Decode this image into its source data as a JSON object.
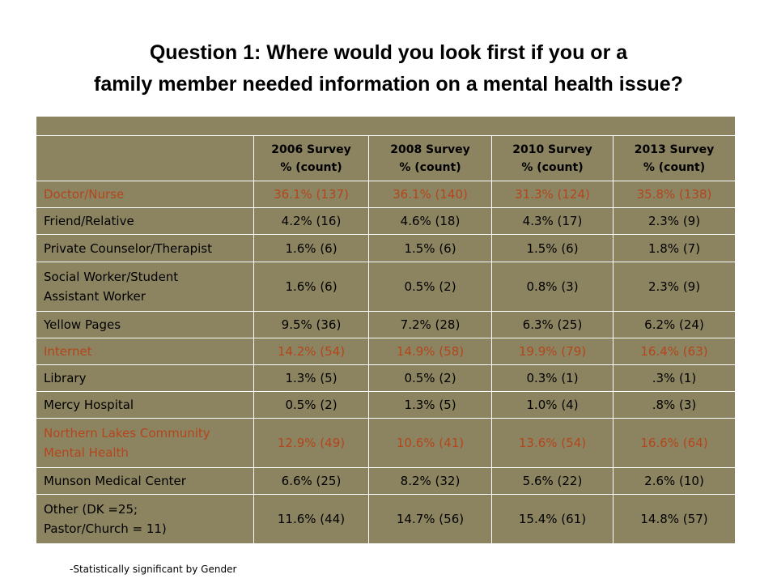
{
  "title": {
    "line1": "Question 1:  Where would you look first if you or a",
    "line2": "family member needed information on a mental health issue?"
  },
  "table": {
    "headers": [
      {
        "survey": "2006 Survey",
        "unit": "% (count)"
      },
      {
        "survey": "2008 Survey",
        "unit": "% (count)"
      },
      {
        "survey": "2010 Survey",
        "unit": "% (count)"
      },
      {
        "survey": "2013 Survey",
        "unit": "% (count)"
      }
    ],
    "rows": [
      {
        "label": [
          "Doctor/Nurse"
        ],
        "values": [
          "36.1% (137)",
          "36.1% (140)",
          "31.3% (124)",
          "35.8% (138)"
        ],
        "highlight": true
      },
      {
        "label": [
          "Friend/Relative"
        ],
        "values": [
          "4.2% (16)",
          "4.6% (18)",
          "4.3% (17)",
          "2.3% (9)"
        ],
        "highlight": false
      },
      {
        "label": [
          "Private Counselor/Therapist"
        ],
        "values": [
          "1.6% (6)",
          "1.5% (6)",
          "1.5% (6)",
          "1.8% (7)"
        ],
        "highlight": false
      },
      {
        "label": [
          "Social Worker/Student",
          "Assistant Worker"
        ],
        "values": [
          "1.6% (6)",
          "0.5% (2)",
          "0.8% (3)",
          "2.3% (9)"
        ],
        "highlight": false
      },
      {
        "label": [
          "Yellow Pages"
        ],
        "values": [
          "9.5% (36)",
          "7.2% (28)",
          "6.3% (25)",
          "6.2% (24)"
        ],
        "highlight": false
      },
      {
        "label": [
          "Internet"
        ],
        "values": [
          "14.2% (54)",
          "14.9% (58)",
          "19.9% (79)",
          "16.4% (63)"
        ],
        "highlight": true
      },
      {
        "label": [
          "Library"
        ],
        "values": [
          "1.3% (5)",
          "0.5% (2)",
          "0.3% (1)",
          ".3% (1)"
        ],
        "highlight": false
      },
      {
        "label": [
          "Mercy Hospital"
        ],
        "values": [
          "0.5% (2)",
          "1.3% (5)",
          "1.0% (4)",
          ".8% (3)"
        ],
        "highlight": false
      },
      {
        "label": [
          "Northern Lakes Community",
          "Mental Health"
        ],
        "values": [
          "12.9% (49)",
          "10.6% (41)",
          "13.6% (54)",
          "16.6% (64)"
        ],
        "highlight": true
      },
      {
        "label": [
          "Munson Medical Center"
        ],
        "values": [
          "6.6% (25)",
          "8.2% (32)",
          "5.6% (22)",
          "2.6% (10)"
        ],
        "highlight": false
      },
      {
        "label": [
          "Other   (DK =25;",
          "Pastor/Church = 11)"
        ],
        "values": [
          "11.6% (44)",
          "14.7% (56)",
          "15.4% (61)",
          "14.8% (57)"
        ],
        "highlight": false
      }
    ]
  },
  "colors": {
    "cell_background": "#8c8460",
    "highlight_text": "#b4451c"
  },
  "footnote": "-Statistically significant by Gender"
}
